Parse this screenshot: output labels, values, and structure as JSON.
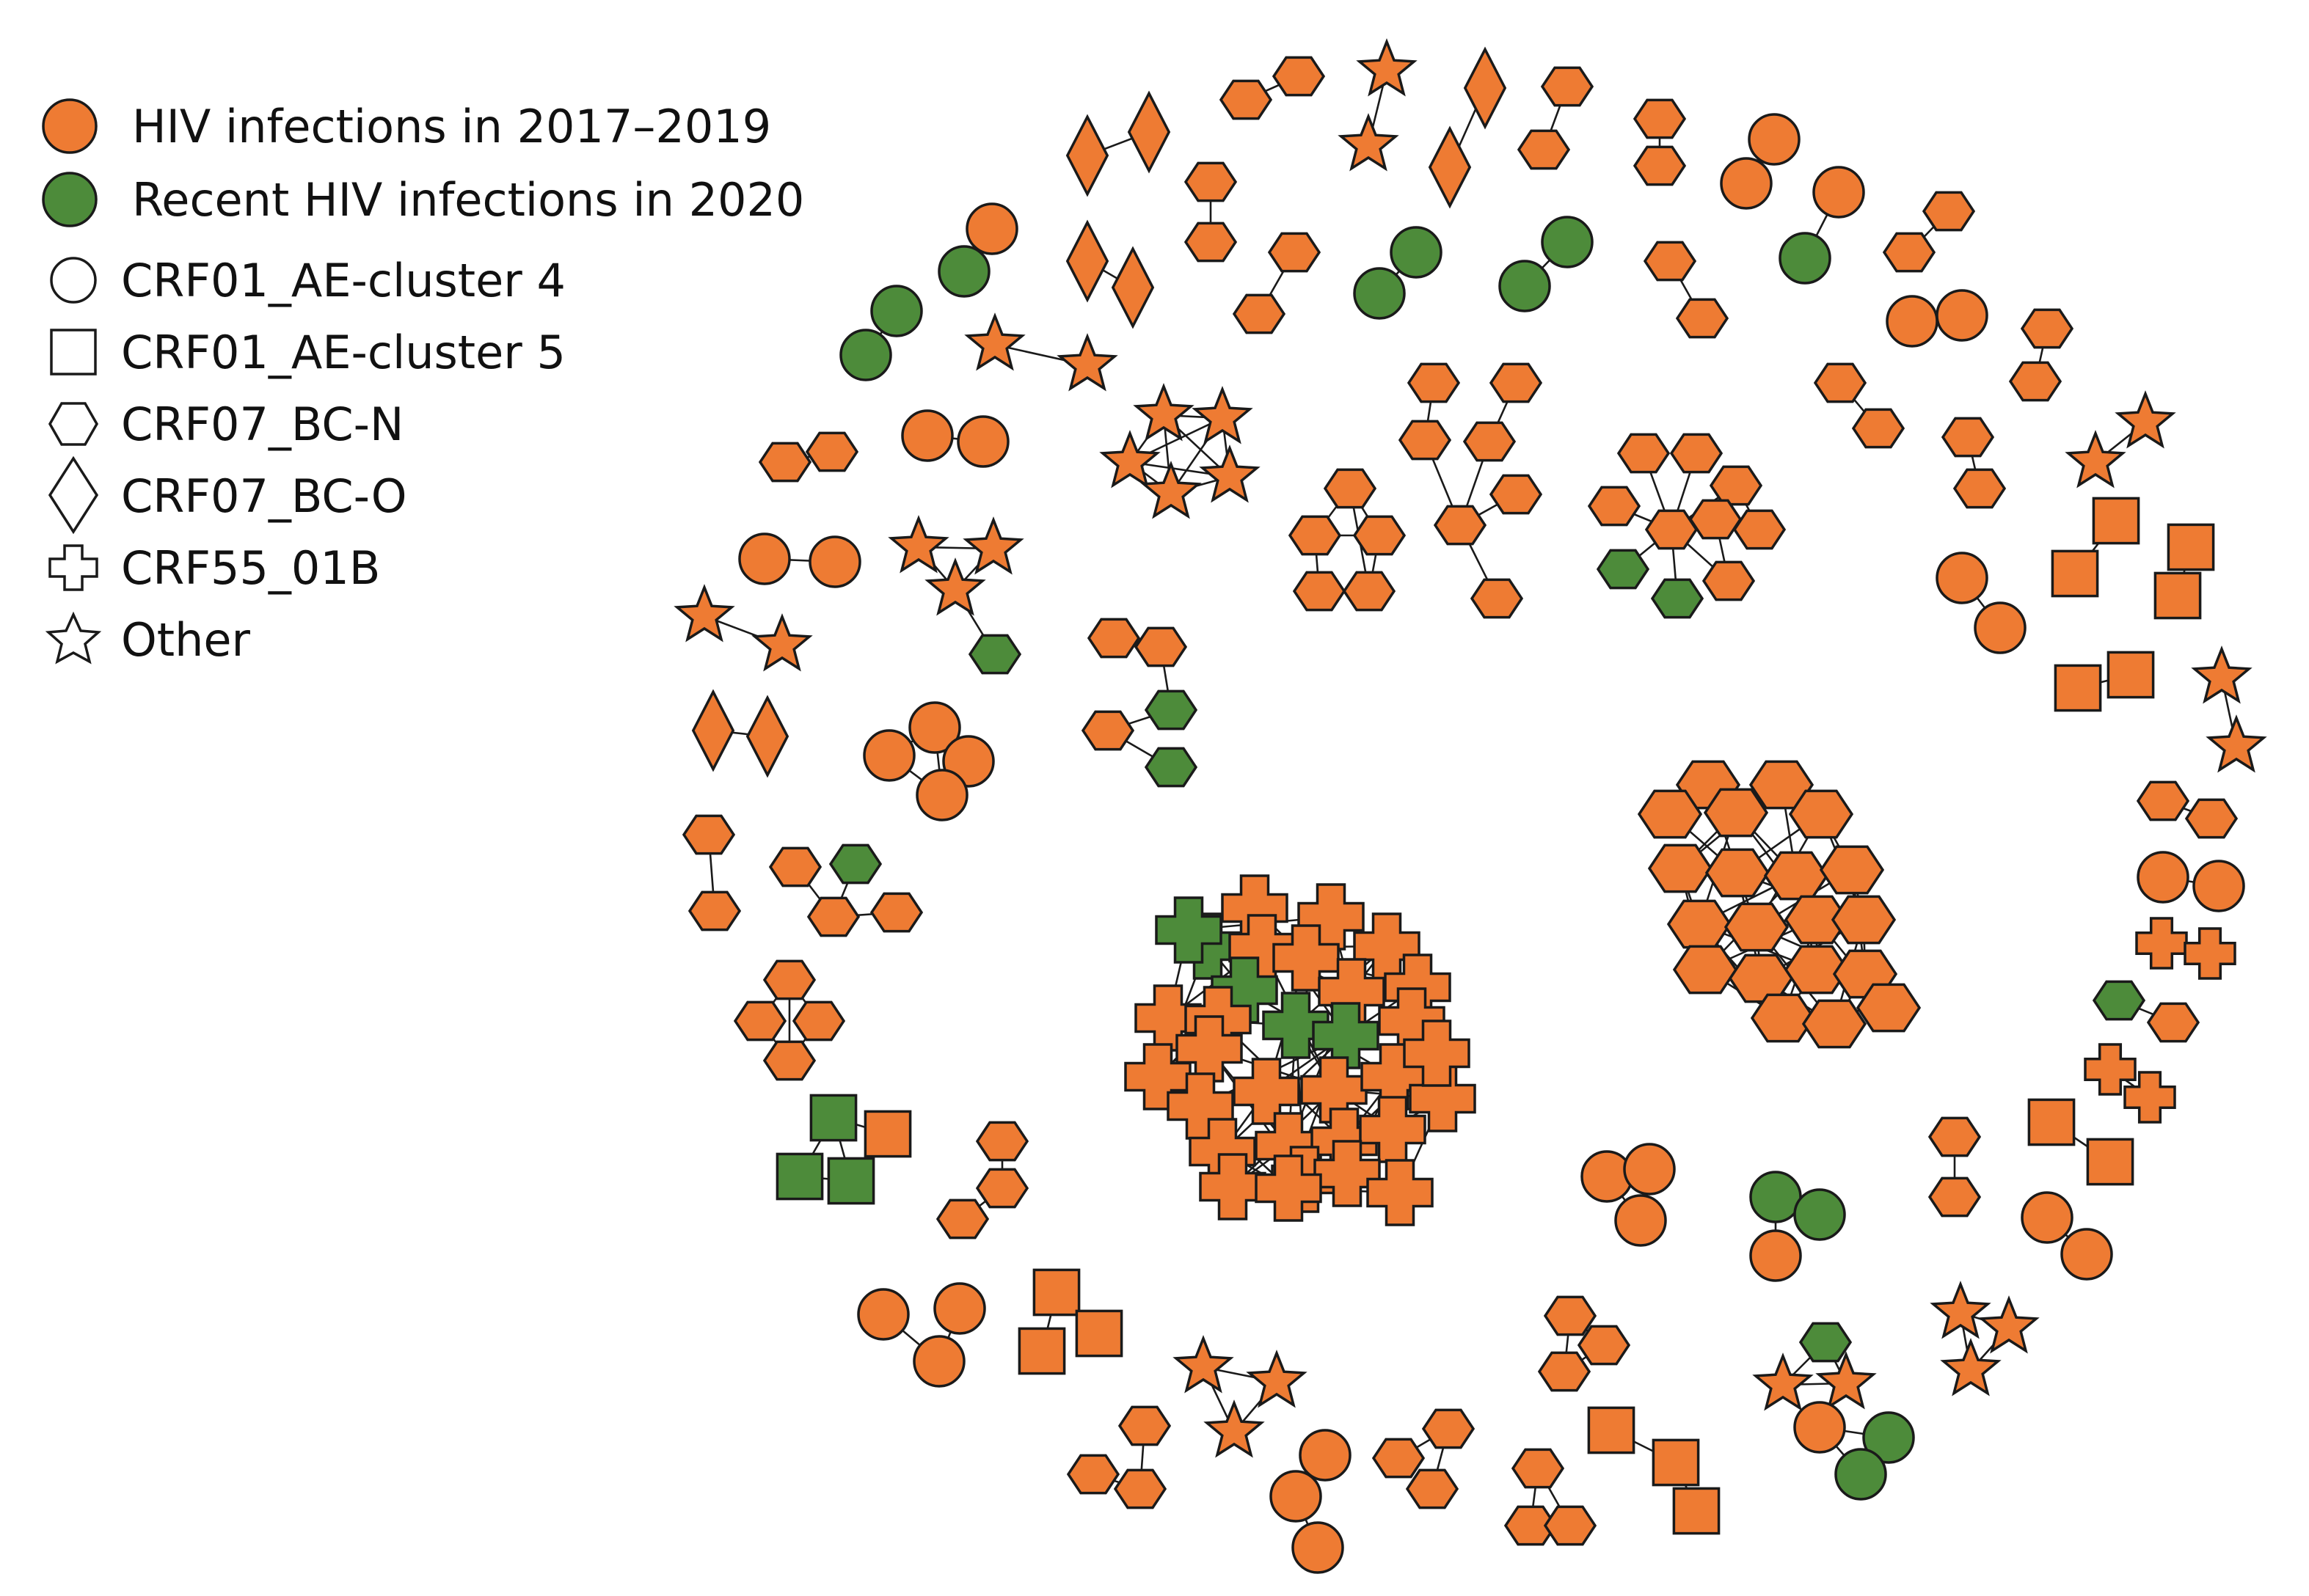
{
  "colors": {
    "orange": "#EE7B33",
    "green": "#4D8B3A",
    "outline": "#1a1a1a",
    "background": "#ffffff"
  },
  "legend": {
    "color_entries": [
      {
        "label": "HIV infections in 2017–2019",
        "color_key": "orange"
      },
      {
        "label": "Recent HIV infections in 2020",
        "color_key": "green"
      }
    ],
    "shape_entries": [
      {
        "label": "CRF01_AE-cluster 4",
        "shape": "circle"
      },
      {
        "label": "CRF01_AE-cluster 5",
        "shape": "square"
      },
      {
        "label": "CRF07_BC-N",
        "shape": "hexagon"
      },
      {
        "label": "CRF07_BC-O",
        "shape": "diamond"
      },
      {
        "label": "CRF55_01B",
        "shape": "cross"
      },
      {
        "label": "Other",
        "shape": "star"
      }
    ]
  }
}
